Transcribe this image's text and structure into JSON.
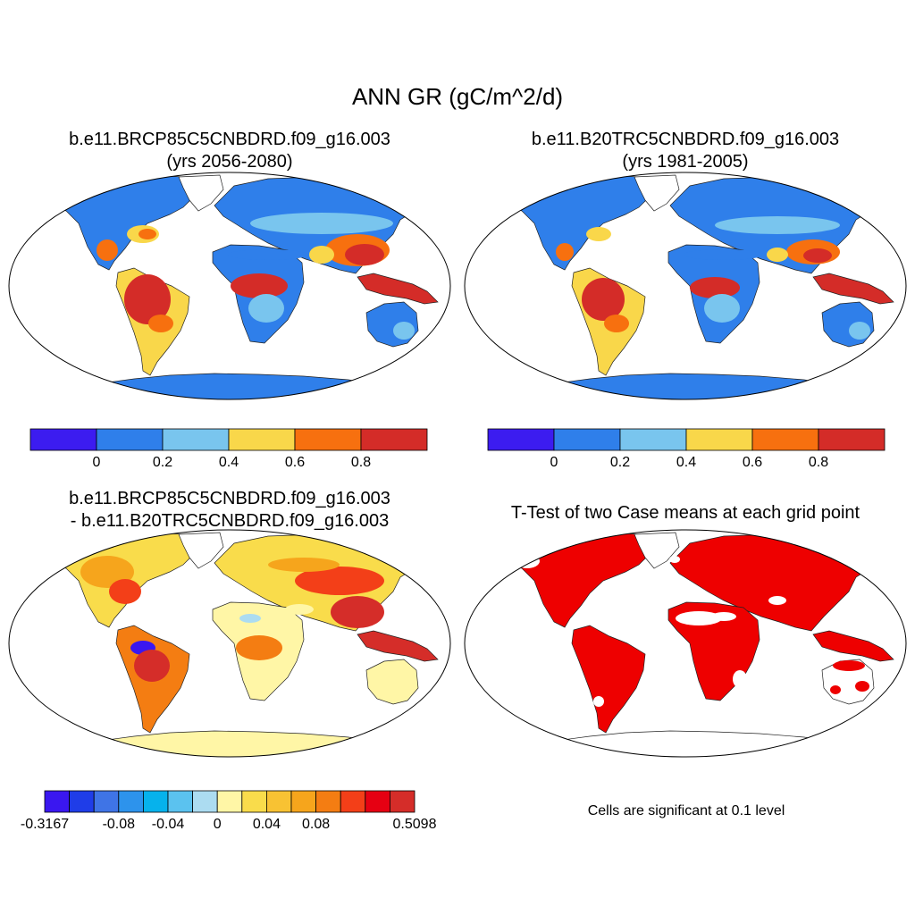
{
  "title": "ANN GR (gC/m^2/d)",
  "panels": [
    {
      "id": "rcp85",
      "title_line1": "b.e11.BRCP85C5CNBDRD.f09_g16.003",
      "title_line2": "(yrs 2056-2080)"
    },
    {
      "id": "b20tr",
      "title_line1": "b.e11.B20TRC5CNBDRD.f09_g16.003",
      "title_line2": "(yrs 1981-2005)"
    },
    {
      "id": "diff",
      "title_line1": "b.e11.BRCP85C5CNBDRD.f09_g16.003",
      "title_line2": "- b.e11.B20TRC5CNBDRD.f09_g16.003"
    },
    {
      "id": "ttest",
      "title_line1": "T-Test of two Case means at each grid point",
      "title_line2": ""
    }
  ],
  "colorbar_main": {
    "colors": [
      "#3c1cf0",
      "#2f7fea",
      "#79c5ee",
      "#f9d74a",
      "#f7700f",
      "#d42c28"
    ],
    "labels": [
      "0",
      "0.2",
      "0.4",
      "0.6",
      "0.8"
    ]
  },
  "colorbar_diff": {
    "colors": [
      "#3a17f0",
      "#1f3de8",
      "#3f74e6",
      "#2d93ec",
      "#06b2ec",
      "#5bc2ef",
      "#acdcf1",
      "#fff6a6",
      "#f9dc4b",
      "#f8c233",
      "#f6a51c",
      "#f47d12",
      "#f33f18",
      "#e60012",
      "#d52d29"
    ],
    "labels": [
      "-0.3167",
      "-0.08",
      "-0.04",
      "0",
      "0.04",
      "0.08",
      "0.5098"
    ]
  },
  "significance_note": "Cells are significant at 0.1 level",
  "colors": {
    "significant": "#ee0000"
  }
}
